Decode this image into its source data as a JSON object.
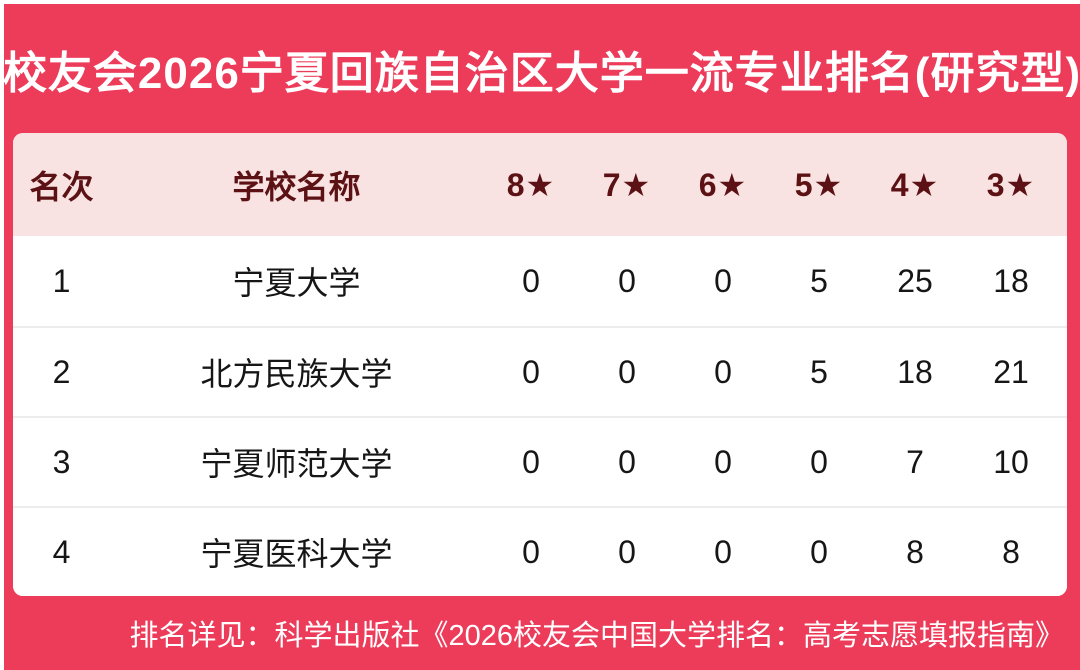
{
  "page": {
    "title": "校友会2026宁夏回族自治区大学一流专业排名(研究型)",
    "footer_note": "排名详见：科学出版社《2026校友会中国大学排名：高考志愿填报指南》"
  },
  "colors": {
    "accent_red": "#ED3B5A",
    "header_pink": "#F8E2E2",
    "header_text_maroon": "#5C1214",
    "body_text": "#161616",
    "divider": "#ECECEC"
  },
  "table": {
    "headers": {
      "rank": "名次",
      "school": "学校名称",
      "star8": "8★",
      "star7": "7★",
      "star6": "6★",
      "star5": "5★",
      "star4": "4★",
      "star3": "3★"
    },
    "rows": [
      {
        "rank": "1",
        "school": "宁夏大学",
        "star8": "0",
        "star7": "0",
        "star6": "0",
        "star5": "5",
        "star4": "25",
        "star3": "18"
      },
      {
        "rank": "2",
        "school": "北方民族大学",
        "star8": "0",
        "star7": "0",
        "star6": "0",
        "star5": "5",
        "star4": "18",
        "star3": "21"
      },
      {
        "rank": "3",
        "school": "宁夏师范大学",
        "star8": "0",
        "star7": "0",
        "star6": "0",
        "star5": "0",
        "star4": "7",
        "star3": "10"
      },
      {
        "rank": "4",
        "school": "宁夏医科大学",
        "star8": "0",
        "star7": "0",
        "star6": "0",
        "star5": "0",
        "star4": "8",
        "star3": "8"
      }
    ]
  }
}
